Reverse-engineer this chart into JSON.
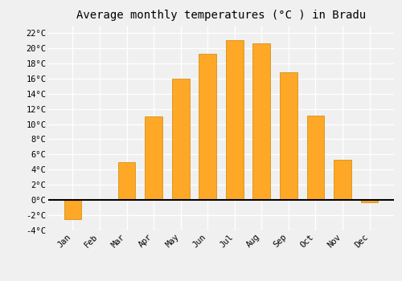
{
  "title": "Average monthly temperatures (°C ) in Bradu",
  "months": [
    "Jan",
    "Feb",
    "Mar",
    "Apr",
    "May",
    "Jun",
    "Jul",
    "Aug",
    "Sep",
    "Oct",
    "Nov",
    "Dec"
  ],
  "values": [
    -2.5,
    0.0,
    5.0,
    11.0,
    16.0,
    19.2,
    21.0,
    20.6,
    16.8,
    11.1,
    5.3,
    -0.3
  ],
  "bar_color": "#FFA726",
  "bar_edge_color": "#CC8800",
  "ylim": [
    -4,
    23
  ],
  "yticks": [
    -4,
    -2,
    0,
    2,
    4,
    6,
    8,
    10,
    12,
    14,
    16,
    18,
    20,
    22
  ],
  "ytick_labels": [
    "-4°C",
    "-2°C",
    "0°C",
    "2°C",
    "4°C",
    "6°C",
    "8°C",
    "10°C",
    "12°C",
    "14°C",
    "16°C",
    "18°C",
    "20°C",
    "22°C"
  ],
  "background_color": "#f0f0f0",
  "grid_color": "#ffffff",
  "zero_line_color": "#000000",
  "title_fontsize": 10,
  "tick_fontsize": 7.5,
  "bar_width": 0.65
}
